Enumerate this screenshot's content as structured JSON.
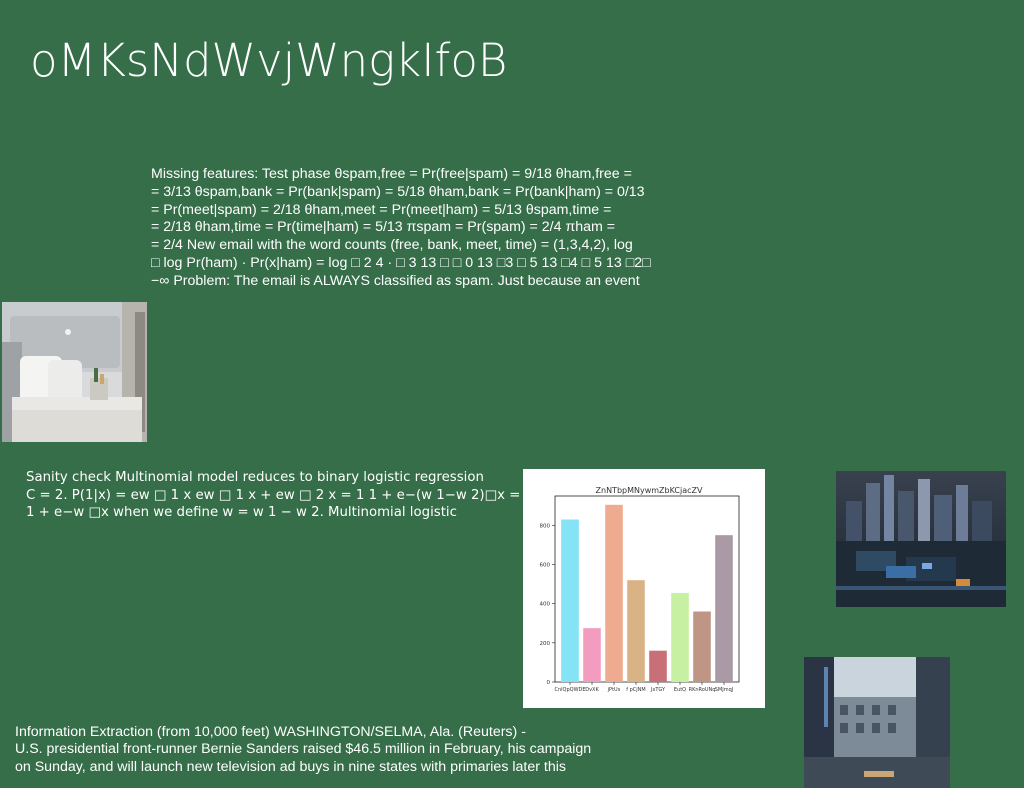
{
  "slide": {
    "title": "oMKsNdWvjWngkIfoB",
    "block1_lines": [
      "Missing features: Test phase θspam,free = Pr(free|spam) = 9/18 θham,free =",
      "= 3/13 θspam,bank = Pr(bank|spam) = 5/18 θham,bank = Pr(bank|ham) = 0/13",
      "= Pr(meet|spam) = 2/18 θham,meet = Pr(meet|ham) = 5/13 θspam,time =",
      "= 2/18 θham,time = Pr(time|ham) = 5/13 πspam = Pr(spam) = 2/4 πham =",
      "= 2/4 New email with the word counts (free, bank, meet, time) = (1,3,4,2), log",
      "□ log Pr(ham) · Pr(x|ham) = log □ 2 4 · □ 3 13 □ □ 0 13 □3 □ 5 13 □4 □ 5 13 □2□",
      "−∞ Problem: The email is ALWAYS classified as spam. Just because an event"
    ],
    "block2_lines": [
      "Sanity check Multinomial model reduces to binary logistic regression",
      "C = 2. P(1|x) = ew □ 1 x ew □ 1 x + ew □ 2 x = 1 1 + e−(w 1−w 2)□x =",
      "1 + e−w □x when we define w = w 1 − w 2. Multinomial logistic"
    ],
    "block3_lines": [
      "Information Extraction (from 10,000 feet) WASHINGTON/SELMA, Ala. (Reuters) -",
      "U.S. presidential front-runner Bernie Sanders raised $46.5 million in February, his campaign",
      "on Sunday, and will launch new television ad buys in nine states with primaries later this"
    ]
  },
  "chart_data": {
    "type": "bar",
    "title": "ZnNTbpMNywmZbKCjacZV",
    "categories": [
      "CnlQpQWDE",
      "DvXK",
      "jPtUs",
      "f pCjNM",
      "JxTGY",
      "EutQ",
      "RKnRoUNq",
      "SMJmqJ"
    ],
    "values": [
      830,
      275,
      905,
      520,
      160,
      455,
      360,
      750
    ],
    "colors": [
      "#84e3f5",
      "#f29cc0",
      "#eeab8f",
      "#d9b386",
      "#c96f78",
      "#c8f0a3",
      "#bf9585",
      "#a99aa6"
    ],
    "yticks": [
      0,
      200,
      400,
      600,
      800
    ],
    "ylim": [
      0,
      950
    ]
  }
}
